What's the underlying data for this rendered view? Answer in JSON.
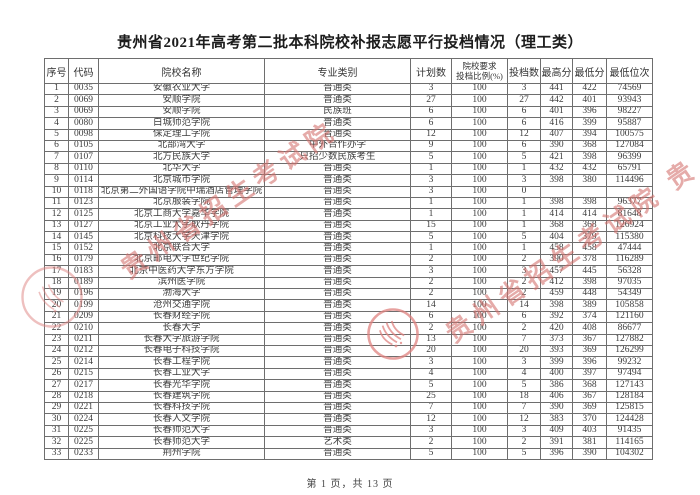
{
  "title": "贵州省2021年高考第二批本科院校补报志愿平行投档情况（理工类）",
  "watermark": {
    "text": "贵州省招生考试院",
    "extra_char": "贵"
  },
  "colors": {
    "watermark_text": "#d4706c",
    "seal": "#df8280",
    "table_border": "#6e6e6e",
    "body_text": "#3c3c3c"
  },
  "table": {
    "headers": [
      "序号",
      "代码",
      "院校名称",
      "专业类别",
      "计划数",
      "院校要求\n投档比例(%)",
      "投档数",
      "最高分",
      "最低分",
      "最低位次"
    ],
    "column_keys": [
      "no",
      "code",
      "name",
      "category",
      "plan",
      "ratio",
      "filed",
      "max_score",
      "min_score",
      "min_rank"
    ],
    "rows": [
      [
        1,
        "0035",
        "安徽农业大学",
        "普通类",
        3,
        100,
        3,
        441,
        422,
        74569
      ],
      [
        2,
        "0069",
        "安顺学院",
        "普通类",
        27,
        100,
        27,
        442,
        401,
        93943
      ],
      [
        3,
        "0069",
        "安顺学院",
        "民族班",
        6,
        100,
        6,
        401,
        396,
        98227
      ],
      [
        4,
        "0080",
        "白城师范学院",
        "普通类",
        6,
        100,
        6,
        416,
        399,
        95887
      ],
      [
        5,
        "0098",
        "保定理工学院",
        "普通类",
        12,
        100,
        12,
        407,
        394,
        100575
      ],
      [
        6,
        "0105",
        "北部湾大学",
        "中外合作办学",
        9,
        100,
        6,
        390,
        368,
        127084
      ],
      [
        7,
        "0107",
        "北方民族大学",
        "只招少数民族考生",
        5,
        100,
        5,
        421,
        398,
        96399
      ],
      [
        8,
        "0110",
        "北华大学",
        "普通类",
        1,
        100,
        1,
        432,
        432,
        65791
      ],
      [
        9,
        "0114",
        "北京城市学院",
        "普通类",
        3,
        100,
        3,
        398,
        380,
        114496
      ],
      [
        10,
        "0118",
        "北京第二外国语学院中瑞酒店管理学院",
        "普通类",
        3,
        100,
        0,
        "",
        "",
        ""
      ],
      [
        11,
        "0123",
        "北京服装学院",
        "普通类",
        1,
        100,
        1,
        398,
        398,
        96377
      ],
      [
        12,
        "0125",
        "北京工商大学嘉华学院",
        "普通类",
        1,
        100,
        1,
        414,
        414,
        81648
      ],
      [
        13,
        "0127",
        "北京工业大学耿丹学院",
        "普通类",
        15,
        100,
        1,
        368,
        368,
        126924
      ],
      [
        14,
        "0145",
        "北京科技大学天津学院",
        "普通类",
        5,
        100,
        5,
        404,
        379,
        115380
      ],
      [
        15,
        "0152",
        "北京联合大学",
        "普通类",
        1,
        100,
        1,
        458,
        458,
        47444
      ],
      [
        16,
        "0179",
        "北京邮电大学世纪学院",
        "普通类",
        2,
        100,
        2,
        390,
        378,
        116289
      ],
      [
        17,
        "0183",
        "北京中医药大学东方学院",
        "普通类",
        3,
        100,
        3,
        457,
        445,
        56328
      ],
      [
        18,
        "0189",
        "滨州医学院",
        "普通类",
        2,
        100,
        2,
        412,
        398,
        97035
      ],
      [
        19,
        "0196",
        "渤海大学",
        "普通类",
        2,
        100,
        2,
        459,
        448,
        54349
      ],
      [
        20,
        "0199",
        "沧州交通学院",
        "普通类",
        14,
        100,
        14,
        398,
        389,
        105858
      ],
      [
        21,
        "0209",
        "长春财经学院",
        "普通类",
        6,
        100,
        6,
        392,
        374,
        121160
      ],
      [
        22,
        "0210",
        "长春大学",
        "普通类",
        2,
        100,
        2,
        420,
        408,
        86677
      ],
      [
        23,
        "0211",
        "长春大学旅游学院",
        "普通类",
        13,
        100,
        7,
        373,
        367,
        127882
      ],
      [
        24,
        "0212",
        "长春电子科技学院",
        "普通类",
        20,
        100,
        20,
        393,
        369,
        126299
      ],
      [
        25,
        "0214",
        "长春工程学院",
        "普通类",
        3,
        100,
        3,
        399,
        396,
        99232
      ],
      [
        26,
        "0215",
        "长春工业大学",
        "普通类",
        4,
        100,
        4,
        400,
        397,
        97494
      ],
      [
        27,
        "0217",
        "长春光华学院",
        "普通类",
        5,
        100,
        5,
        386,
        368,
        127143
      ],
      [
        28,
        "0218",
        "长春建筑学院",
        "普通类",
        25,
        100,
        18,
        406,
        367,
        128184
      ],
      [
        29,
        "0221",
        "长春科技学院",
        "普通类",
        7,
        100,
        7,
        390,
        369,
        125815
      ],
      [
        30,
        "0224",
        "长春人文学院",
        "普通类",
        12,
        100,
        12,
        383,
        370,
        124428
      ],
      [
        31,
        "0225",
        "长春师范大学",
        "普通类",
        3,
        100,
        3,
        409,
        403,
        91435
      ],
      [
        32,
        "0225",
        "长春师范大学",
        "艺术类",
        2,
        100,
        2,
        391,
        381,
        114165
      ],
      [
        33,
        "0233",
        "荆州学院",
        "普通类",
        5,
        100,
        5,
        396,
        390,
        104302
      ]
    ]
  },
  "footer": {
    "page_text": "第 1 页，共 13 页"
  }
}
